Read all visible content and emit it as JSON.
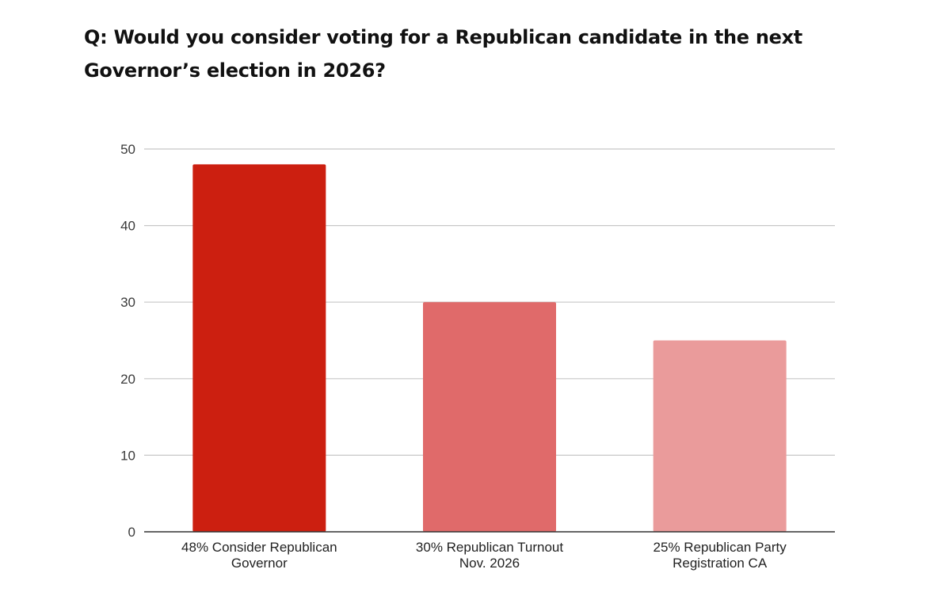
{
  "chart_data": {
    "type": "bar",
    "title": "Q: Would you consider voting for a Republican candidate in the next Governor’s election in 2026?",
    "categories": [
      [
        "48% Consider Republican",
        "Governor"
      ],
      [
        "30% Republican Turnout",
        "Nov. 2026"
      ],
      [
        "25% Republican Party",
        "Registration CA"
      ]
    ],
    "values": [
      48,
      30,
      25
    ],
    "colors": [
      "#cc1f10",
      "#e06a6a",
      "#ea9b9b"
    ],
    "ylim": [
      0,
      50
    ],
    "yticks": [
      0,
      10,
      20,
      30,
      40,
      50
    ],
    "grid": true,
    "xlabel": "",
    "ylabel": ""
  }
}
